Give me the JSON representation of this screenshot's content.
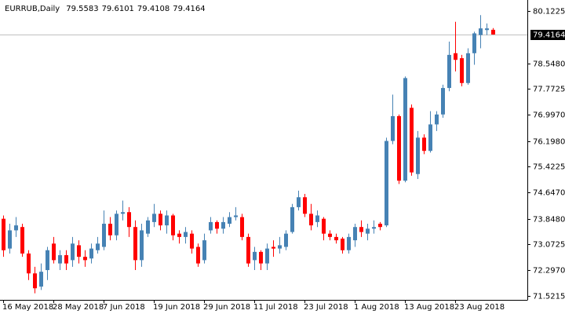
{
  "chart_data": {
    "type": "candlestick",
    "title": "EURRUB,Daily",
    "categories": [
      "16 May 2018",
      null,
      null,
      null,
      null,
      null,
      null,
      null,
      "28 May 2018",
      null,
      null,
      null,
      null,
      null,
      null,
      null,
      "7 Jun 2018",
      null,
      null,
      null,
      null,
      null,
      null,
      null,
      "19 Jun 2018",
      null,
      null,
      null,
      null,
      null,
      null,
      null,
      "29 Jun 2018",
      null,
      null,
      null,
      null,
      null,
      null,
      null,
      "11 Jul 2018",
      null,
      null,
      null,
      null,
      null,
      null,
      null,
      "23 Jul 2018",
      null,
      null,
      null,
      null,
      null,
      null,
      null,
      "1 Aug 2018",
      null,
      null,
      null,
      null,
      null,
      null,
      null,
      "13 Aug 2018",
      null,
      null,
      null,
      null,
      null,
      null,
      null,
      "23 Aug 2018",
      null,
      null,
      null,
      null,
      null,
      null
    ],
    "open": [
      73.85,
      72.95,
      73.5,
      73.6,
      72.8,
      72.2,
      71.8,
      72.3,
      73.1,
      72.5,
      72.75,
      72.6,
      73.05,
      72.7,
      72.65,
      72.9,
      73.0,
      73.7,
      73.35,
      74.0,
      74.05,
      73.6,
      72.6,
      73.4,
      73.75,
      74.0,
      73.65,
      73.95,
      73.4,
      73.3,
      73.4,
      73.0,
      72.6,
      73.5,
      73.75,
      73.55,
      73.7,
      73.9,
      73.9,
      73.3,
      72.6,
      72.85,
      72.5,
      73.0,
      72.95,
      73.0,
      73.45,
      74.2,
      74.5,
      74.0,
      73.75,
      73.85,
      73.4,
      73.3,
      73.25,
      72.9,
      73.2,
      73.6,
      73.4,
      73.55,
      73.7,
      73.65,
      76.2,
      76.95,
      75.0,
      77.2,
      75.2,
      76.3,
      75.9,
      76.7,
      77.0,
      77.8,
      78.85,
      78.7,
      77.95,
      78.85,
      79.4,
      79.55,
      79.5583
    ],
    "high": [
      73.95,
      73.7,
      73.9,
      73.7,
      72.9,
      72.4,
      72.5,
      73.0,
      73.3,
      72.9,
      72.9,
      73.3,
      73.2,
      72.9,
      73.1,
      73.3,
      74.1,
      73.9,
      74.1,
      74.4,
      74.2,
      73.8,
      73.7,
      73.9,
      74.3,
      74.1,
      74.1,
      74.0,
      73.5,
      73.6,
      73.5,
      73.1,
      73.4,
      73.9,
      73.8,
      73.9,
      74.05,
      74.2,
      74.0,
      73.4,
      73.0,
      72.9,
      73.1,
      73.2,
      73.3,
      73.5,
      74.3,
      74.7,
      74.6,
      74.3,
      74.1,
      73.9,
      73.5,
      73.4,
      73.3,
      73.4,
      73.7,
      73.8,
      73.7,
      73.8,
      73.75,
      76.3,
      77.6,
      77.0,
      78.15,
      77.3,
      76.5,
      76.4,
      77.1,
      77.1,
      77.9,
      79.2,
      79.8,
      78.8,
      79.0,
      79.5,
      80.0,
      79.75,
      79.6101
    ],
    "low": [
      72.7,
      72.8,
      73.3,
      72.7,
      72.0,
      71.6,
      71.7,
      72.0,
      72.5,
      72.3,
      72.3,
      72.4,
      72.5,
      72.4,
      72.5,
      72.8,
      72.9,
      73.2,
      73.2,
      73.8,
      73.3,
      72.3,
      72.4,
      73.3,
      73.6,
      73.5,
      73.4,
      73.2,
      73.1,
      73.1,
      72.8,
      72.4,
      72.5,
      73.4,
      73.4,
      73.4,
      73.6,
      73.8,
      73.2,
      72.4,
      72.3,
      72.3,
      72.3,
      72.7,
      72.8,
      72.9,
      73.4,
      74.1,
      73.9,
      73.5,
      73.6,
      73.2,
      73.2,
      73.1,
      72.8,
      72.8,
      73.0,
      73.3,
      73.2,
      73.4,
      73.5,
      73.6,
      76.1,
      74.9,
      74.95,
      75.15,
      75.05,
      75.8,
      75.85,
      76.5,
      76.9,
      77.7,
      78.3,
      77.85,
      77.9,
      78.5,
      79.0,
      79.4,
      79.4108
    ],
    "close": [
      72.9,
      73.5,
      73.65,
      72.8,
      72.2,
      71.75,
      72.25,
      72.9,
      72.6,
      72.75,
      72.5,
      73.1,
      72.7,
      72.6,
      72.95,
      73.1,
      73.7,
      73.35,
      74.0,
      74.05,
      73.6,
      72.6,
      73.5,
      73.8,
      74.0,
      73.65,
      73.95,
      73.35,
      73.3,
      73.45,
      72.95,
      72.5,
      73.2,
      73.75,
      73.55,
      73.75,
      73.9,
      73.95,
      73.3,
      72.5,
      72.85,
      72.5,
      72.95,
      72.95,
      73.05,
      73.4,
      74.2,
      74.5,
      74.0,
      73.65,
      73.95,
      73.4,
      73.3,
      73.2,
      72.9,
      73.3,
      73.6,
      73.45,
      73.55,
      73.6,
      73.6,
      76.2,
      76.95,
      75.0,
      78.1,
      75.25,
      76.3,
      75.9,
      76.7,
      77.0,
      77.8,
      78.8,
      78.65,
      77.95,
      78.85,
      79.45,
      79.6,
      79.6,
      79.4164
    ],
    "up_color": "#4682b4",
    "down_color": "#ff0000",
    "last_price_line_color": "#c0c0c0",
    "ylim": [
      71.4,
      80.41
    ],
    "yticks": [
      80.1225,
      {
        "value": 78.548,
        "label": "78.5480"
      },
      77.7725,
      {
        "value": 76.997,
        "label": "76.9970"
      },
      {
        "value": 76.198,
        "label": "76.1980"
      },
      75.4225,
      {
        "value": 74.647,
        "label": "74.6470"
      },
      {
        "value": 73.848,
        "label": "73.8480"
      },
      73.0725,
      {
        "value": 72.297,
        "label": "72.2970"
      },
      71.5215
    ],
    "grid": false
  }
}
